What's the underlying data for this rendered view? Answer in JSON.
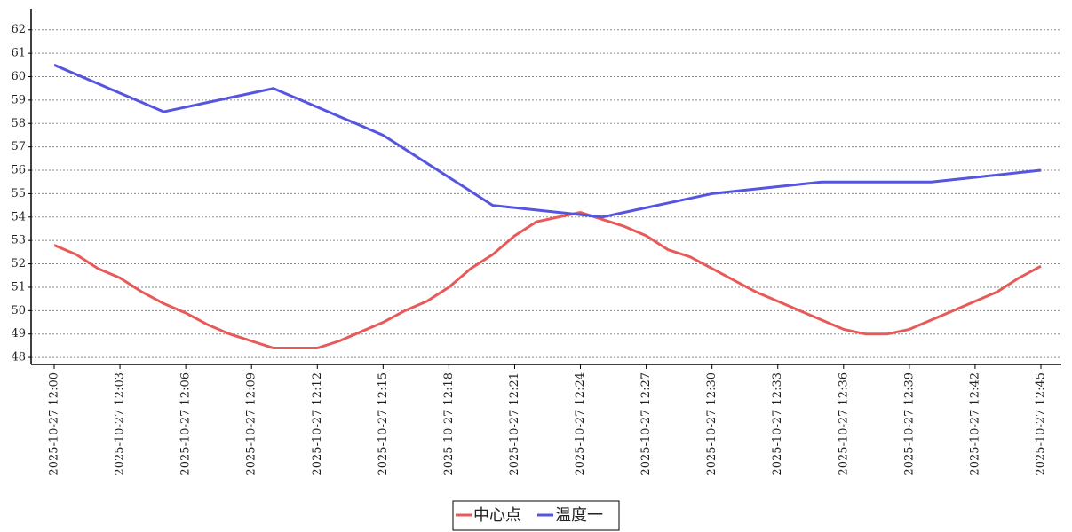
{
  "chart_data": {
    "type": "line",
    "categories": [
      "2025-10-27 12:00",
      null,
      null,
      "2025-10-27 12:03",
      null,
      null,
      "2025-10-27 12:06",
      null,
      null,
      "2025-10-27 12:09",
      null,
      null,
      "2025-10-27 12:12",
      null,
      null,
      "2025-10-27 12:15",
      null,
      null,
      "2025-10-27 12:18",
      null,
      null,
      "2025-10-27 12:21",
      null,
      null,
      "2025-10-27 12:24",
      null,
      null,
      "2025-10-27 12:27",
      null,
      null,
      "2025-10-27 12:30",
      null,
      null,
      "2025-10-27 12:33",
      null,
      null,
      "2025-10-27 12:36",
      null,
      null,
      "2025-10-27 12:39",
      null,
      null,
      "2025-10-27 12:42",
      null,
      null,
      "2025-10-27 12:45"
    ],
    "series": [
      {
        "name": "中心点",
        "color": "#e85a5a",
        "values": [
          52.8,
          52.4,
          51.8,
          51.4,
          50.8,
          50.3,
          49.9,
          49.4,
          49.0,
          48.7,
          48.4,
          48.4,
          48.4,
          48.7,
          49.1,
          49.5,
          50.0,
          50.4,
          51.0,
          51.8,
          52.4,
          53.2,
          53.8,
          54.0,
          54.2,
          53.9,
          53.6,
          53.2,
          52.6,
          52.3,
          51.8,
          51.3,
          50.8,
          50.4,
          50.0,
          49.6,
          49.2,
          49.0,
          49.0,
          49.2,
          49.6,
          50.0,
          50.4,
          50.8,
          51.4,
          51.9
        ]
      },
      {
        "name": "温度一",
        "color": "#5555e0",
        "values": [
          60.5,
          60.1,
          59.7,
          59.3,
          58.9,
          58.5,
          58.7,
          58.9,
          59.1,
          59.3,
          59.5,
          59.1,
          58.7,
          58.3,
          57.9,
          57.5,
          56.9,
          56.3,
          55.7,
          55.1,
          54.5,
          54.4,
          54.3,
          54.2,
          54.1,
          54.0,
          54.2,
          54.4,
          54.6,
          54.8,
          55.0,
          55.1,
          55.2,
          55.3,
          55.4,
          55.5,
          55.5,
          55.5,
          55.5,
          55.5,
          55.5,
          55.6,
          55.7,
          55.8,
          55.9,
          56.0
        ]
      }
    ],
    "ylim": [
      47.7,
      62.9
    ],
    "yticks": [
      48,
      49,
      50,
      51,
      52,
      53,
      54,
      55,
      56,
      57,
      58,
      59,
      60,
      61,
      62
    ],
    "grid": true,
    "legend": "bottom"
  }
}
